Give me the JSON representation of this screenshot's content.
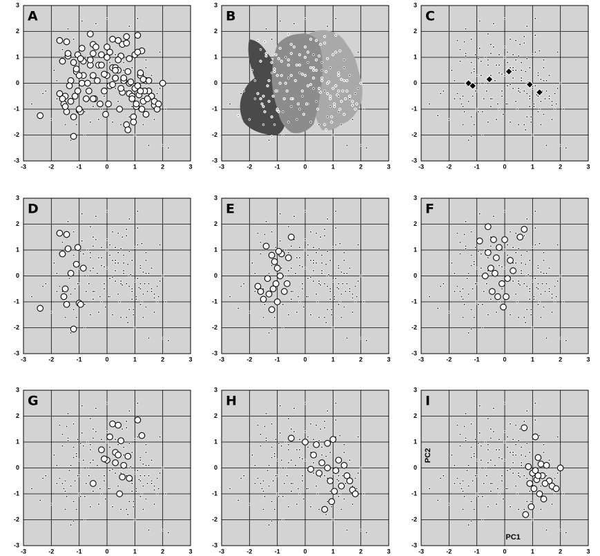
{
  "chart_data": {
    "type": "scatter",
    "panels": [
      "A",
      "B",
      "C",
      "D",
      "E",
      "F",
      "G",
      "H",
      "I"
    ],
    "xlim": [
      -3,
      3
    ],
    "ylim": [
      -3,
      3
    ],
    "xticks": [
      -3,
      -2,
      -1,
      0,
      1,
      2,
      3
    ],
    "yticks": [
      -3,
      -2,
      -1,
      0,
      1,
      2,
      3
    ],
    "xlabel": "PC1",
    "ylabel": "PC2",
    "background": {
      "x": [
        -2.7,
        -2.2,
        -2.0,
        -1.9,
        -1.8,
        -1.6,
        -1.5,
        -1.4,
        -1.3,
        -1.2,
        -1.1,
        -0.9,
        -0.8,
        -0.7,
        -0.6,
        -0.5,
        -0.4,
        -0.3,
        -0.2,
        -0.1,
        0.0,
        0.1,
        0.2,
        0.3,
        0.4,
        0.5,
        0.6,
        0.7,
        0.8,
        0.9,
        1.0,
        1.1,
        1.2,
        1.3,
        1.4,
        1.5,
        1.6,
        1.7,
        1.8,
        1.9,
        2.0,
        2.1,
        -1.0,
        -0.6,
        0.3,
        0.9,
        1.4,
        -1.8,
        -0.2,
        0.6,
        1.9,
        2.2,
        -2.3,
        -1.2,
        0.1,
        0.8,
        1.6,
        -0.8,
        0.5,
        1.2
      ],
      "y": [
        -0.8,
        -0.3,
        -1.4,
        0.5,
        -0.6,
        1.3,
        -1.6,
        2.1,
        -2.2,
        1.7,
        -1.6,
        2.4,
        -2.0,
        1.0,
        -1.5,
        -0.9,
        2.3,
        -1.4,
        0.4,
        -0.5,
        2.5,
        -0.8,
        -1.5,
        1.1,
        -0.7,
        -1.6,
        0.8,
        -0.3,
        2.2,
        0.6,
        -2.0,
        2.5,
        -0.5,
        -1.6,
        0.9,
        -2.4,
        0.3,
        -1.4,
        -0.4,
        1.2,
        -2.4,
        -1.0,
        -0.3,
        0.2,
        -0.2,
        -0.9,
        0.6,
        0.1,
        -1.0,
        0.5,
        -0.2,
        -2.5,
        -0.4,
        0.4,
        0.8,
        -1.3,
        -0.6,
        -1.1,
        -0.3,
        -1.1
      ]
    },
    "groups": [
      {
        "x": [
          -2.4,
          -1.7,
          -1.6,
          -1.45,
          -1.4,
          -1.5,
          -1.3,
          -1.2,
          -1.0,
          -0.95,
          -1.05,
          -1.1,
          -1.45,
          -1.55,
          -0.85
        ],
        "y": [
          -1.25,
          1.65,
          0.85,
          1.6,
          1.05,
          -0.5,
          0.1,
          -2.05,
          -1.05,
          -1.1,
          1.1,
          0.45,
          -1.1,
          -0.8,
          0.3
        ]
      },
      {
        "x": [
          -1.4,
          -1.2,
          -1.1,
          -1.0,
          -0.9,
          -1.05,
          -1.15,
          -1.3,
          -1.5,
          -1.6,
          -1.7,
          -0.85,
          -0.75,
          -0.5,
          -0.6,
          -1.2,
          -1.0,
          -0.95,
          -1.35,
          -0.65
        ],
        "y": [
          1.15,
          0.8,
          0.55,
          0.3,
          0.0,
          -0.3,
          -0.5,
          -0.7,
          -0.9,
          -0.6,
          -0.4,
          0.85,
          -0.6,
          1.5,
          0.7,
          -1.3,
          -1.0,
          0.95,
          -0.1,
          -0.3
        ]
      },
      {
        "x": [
          -0.6,
          -0.4,
          -0.2,
          0.0,
          -0.3,
          -0.5,
          -0.7,
          -0.1,
          0.1,
          0.3,
          -0.45,
          -0.25,
          0.55,
          0.7,
          -0.9,
          -0.05,
          0.2,
          -0.6,
          -0.35,
          0.05
        ],
        "y": [
          1.9,
          1.4,
          1.1,
          1.4,
          0.7,
          0.3,
          0.0,
          -0.3,
          -0.1,
          0.2,
          -0.6,
          -0.8,
          1.5,
          1.8,
          1.35,
          -1.2,
          0.6,
          0.9,
          0.1,
          -0.8
        ]
      },
      {
        "x": [
          0.2,
          0.4,
          1.1,
          1.25,
          0.5,
          0.3,
          0.0,
          -0.2,
          0.1,
          0.6,
          0.8,
          0.4,
          0.45,
          -0.5,
          -0.1,
          0.75,
          0.55,
          0.3
        ],
        "y": [
          1.7,
          1.65,
          1.85,
          1.25,
          1.05,
          0.6,
          0.3,
          0.7,
          1.2,
          0.1,
          -0.4,
          0.5,
          -1.0,
          -0.6,
          0.35,
          0.45,
          -0.35,
          0.2
        ]
      },
      {
        "x": [
          -0.5,
          0.0,
          0.4,
          0.8,
          1.0,
          1.2,
          1.5,
          1.7,
          1.8,
          1.1,
          0.9,
          0.6,
          0.3,
          0.2,
          0.7,
          1.3,
          1.6,
          0.95,
          0.8,
          1.05,
          0.5,
          1.4
        ],
        "y": [
          1.15,
          1.0,
          0.9,
          0.95,
          1.1,
          0.3,
          -0.3,
          -0.85,
          -1.0,
          -0.1,
          -0.5,
          0.2,
          0.5,
          -0.05,
          -1.6,
          -0.7,
          -0.5,
          -1.3,
          0.0,
          -0.9,
          -0.2,
          0.1
        ]
      },
      {
        "x": [
          0.7,
          1.1,
          0.85,
          1.2,
          1.3,
          1.0,
          1.15,
          1.35,
          1.6,
          1.7,
          1.85,
          2.0,
          1.25,
          0.95,
          1.05,
          0.75,
          1.4,
          1.5,
          1.1,
          0.9,
          1.2,
          1.45
        ],
        "y": [
          1.55,
          1.2,
          0.05,
          0.4,
          0.15,
          -0.2,
          -0.45,
          -0.3,
          -0.5,
          -0.7,
          -0.8,
          0.0,
          -1.0,
          -1.5,
          -0.8,
          -1.8,
          -1.2,
          0.1,
          -0.1,
          -0.6,
          -0.3,
          -0.6
        ]
      }
    ],
    "centroids": {
      "x": [
        -1.3,
        -1.15,
        -0.55,
        0.15,
        0.9,
        1.25
      ],
      "y": [
        0.0,
        -0.1,
        0.15,
        0.45,
        -0.05,
        -0.35
      ]
    }
  }
}
